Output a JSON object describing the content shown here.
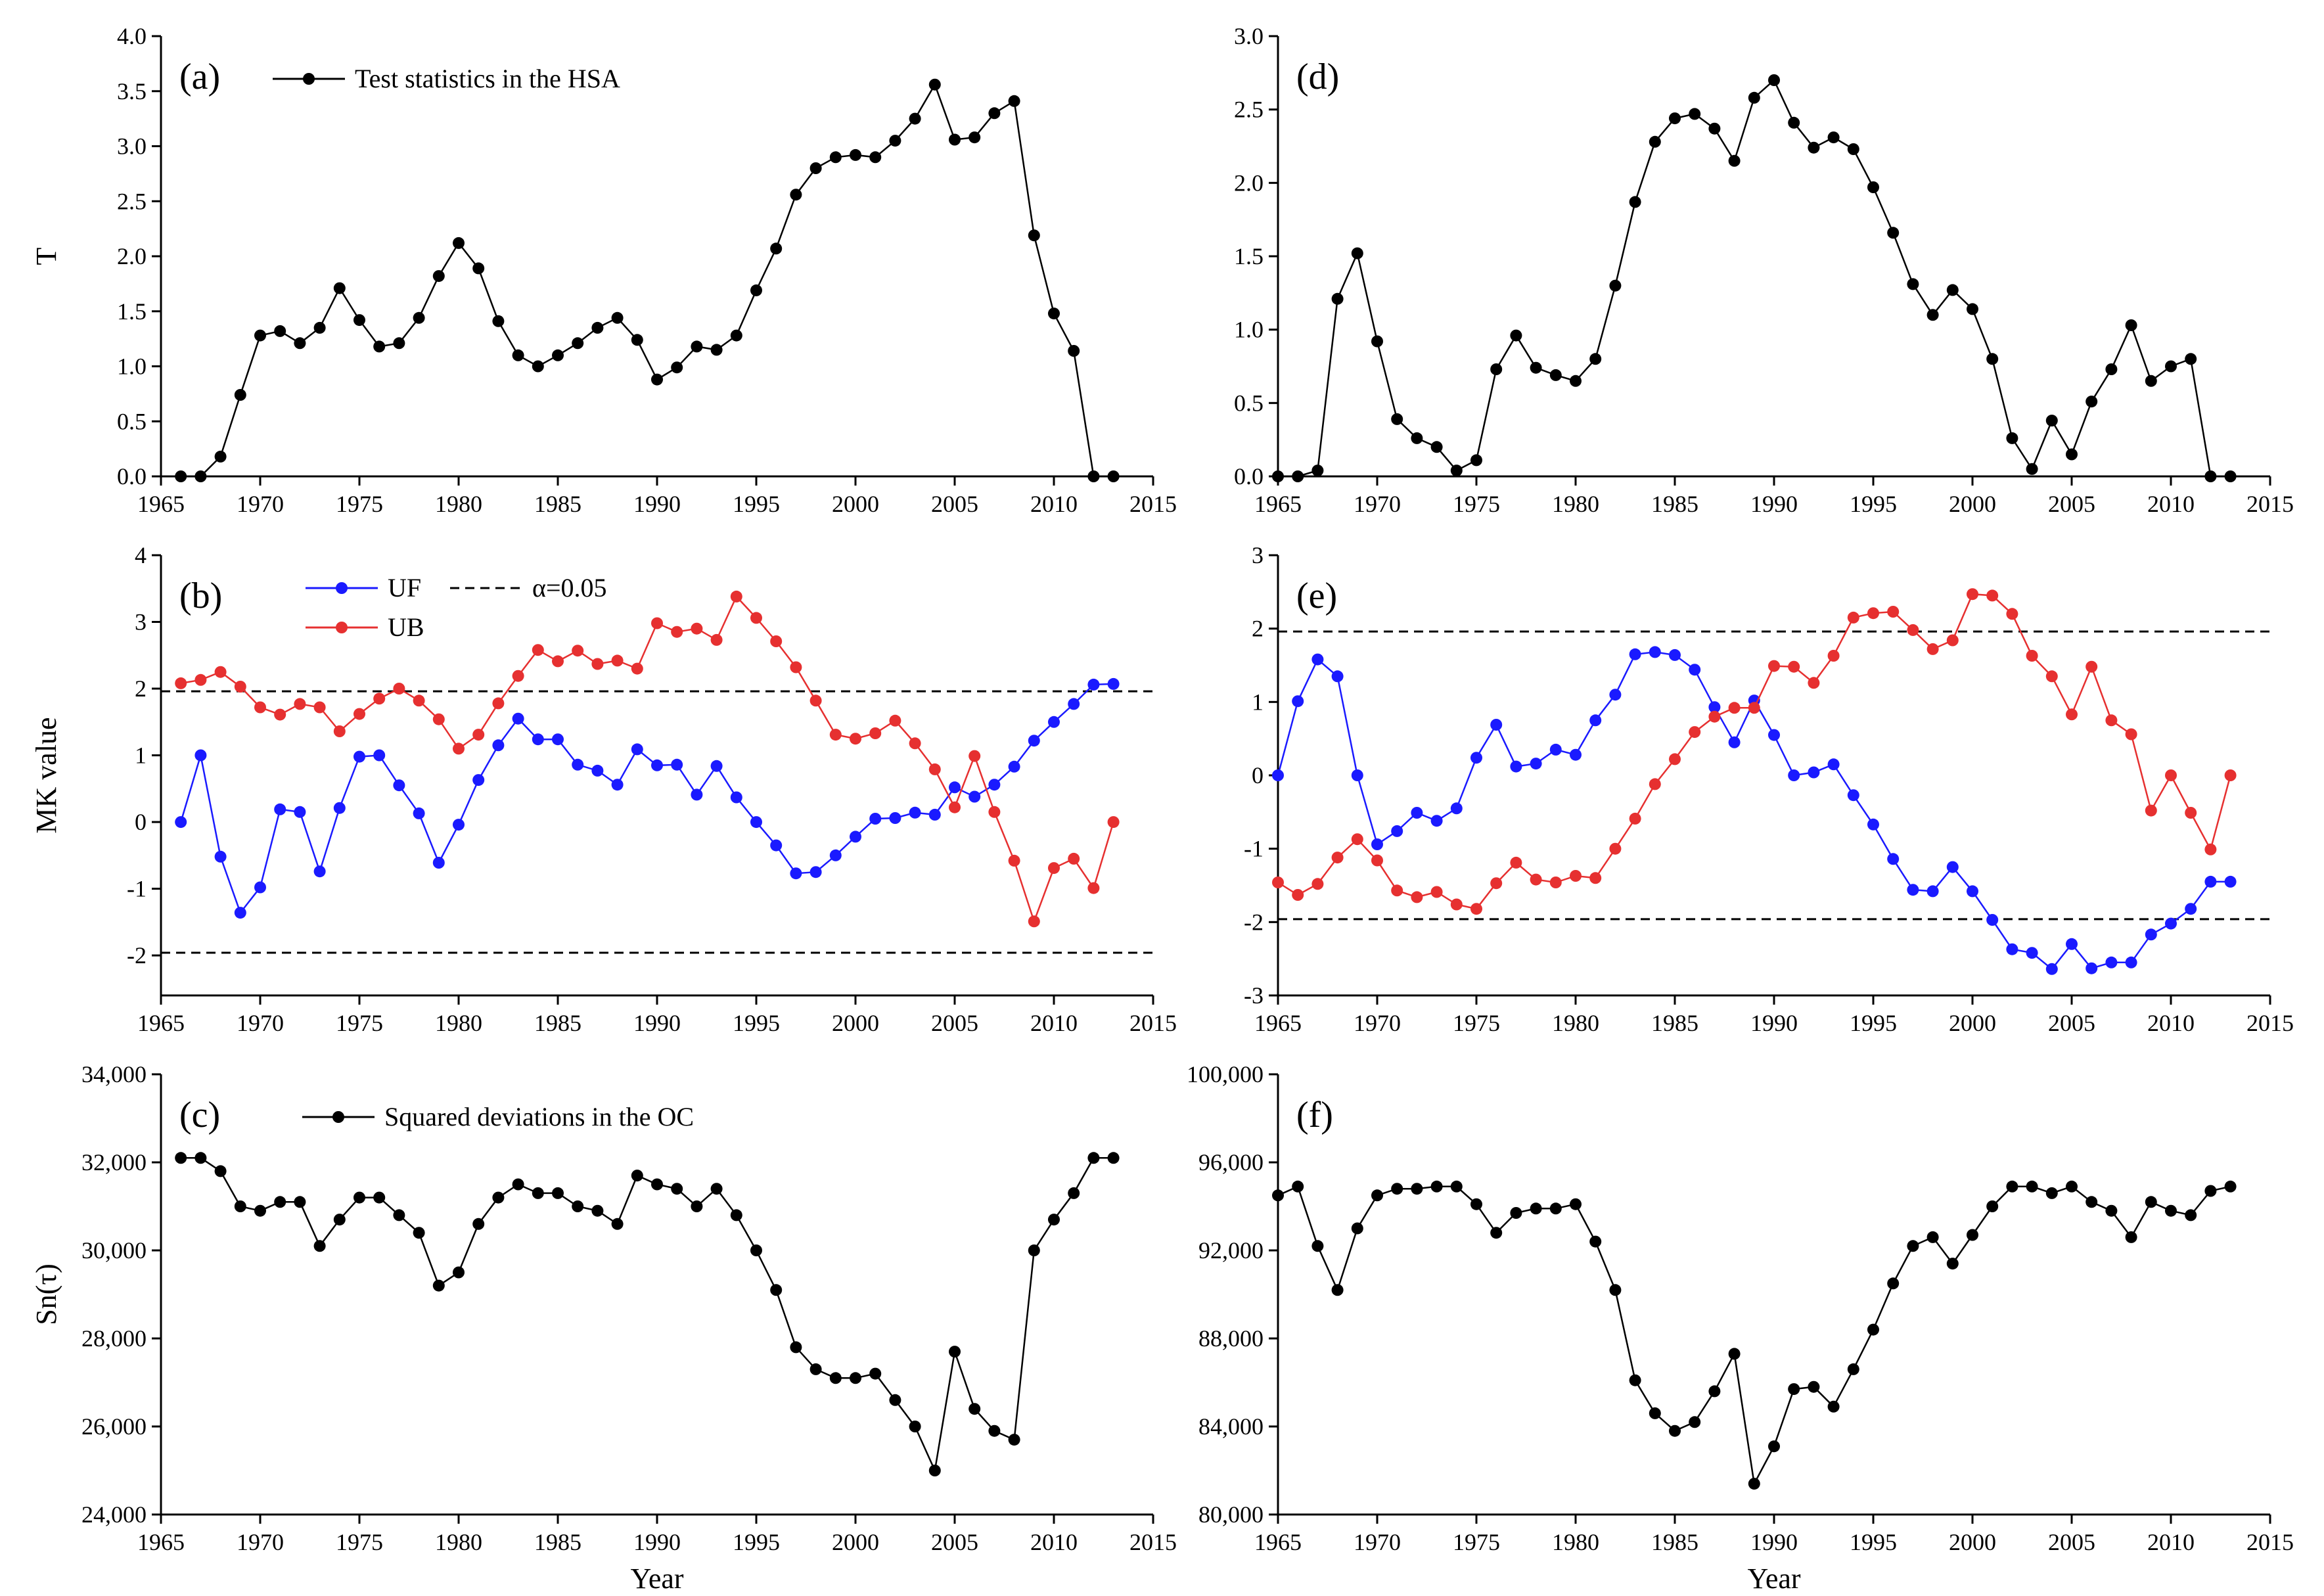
{
  "chart_data": [
    {
      "id": "a",
      "type": "line",
      "panel_label": "(a)",
      "xlabel": "",
      "ylabel": "T",
      "xlim": [
        1965,
        2015
      ],
      "ylim": [
        0,
        4
      ],
      "xticks": [
        1965,
        1970,
        1975,
        1980,
        1985,
        1990,
        1995,
        2000,
        2005,
        2010,
        2015
      ],
      "yticks": [
        0.0,
        0.5,
        1.0,
        1.5,
        2.0,
        2.5,
        3.0,
        3.5,
        4.0
      ],
      "ytick_labels": [
        "0.0",
        "0.5",
        "1.0",
        "1.5",
        "2.0",
        "2.5",
        "3.0",
        "3.5",
        "4.0"
      ],
      "legend": "top-left",
      "grid": false,
      "series": [
        {
          "name": "Test statistics in the HSA",
          "color": "#000000",
          "x": [
            1966,
            1967,
            1968,
            1969,
            1970,
            1971,
            1972,
            1973,
            1974,
            1975,
            1976,
            1977,
            1978,
            1979,
            1980,
            1981,
            1982,
            1983,
            1984,
            1985,
            1986,
            1987,
            1988,
            1989,
            1990,
            1991,
            1992,
            1993,
            1994,
            1995,
            1996,
            1997,
            1998,
            1999,
            2000,
            2001,
            2002,
            2003,
            2004,
            2005,
            2006,
            2007,
            2008,
            2009,
            2010,
            2011,
            2012,
            2013
          ],
          "y": [
            0.0,
            0.0,
            0.18,
            0.74,
            1.28,
            1.32,
            1.21,
            1.35,
            1.71,
            1.42,
            1.18,
            1.21,
            1.44,
            1.82,
            2.12,
            1.89,
            1.41,
            1.1,
            1.0,
            1.1,
            1.21,
            1.35,
            1.44,
            1.24,
            0.88,
            0.99,
            1.18,
            1.15,
            1.28,
            1.69,
            2.07,
            2.56,
            2.8,
            2.9,
            2.92,
            2.9,
            3.05,
            3.25,
            3.56,
            3.06,
            3.08,
            3.3,
            3.41,
            2.19,
            1.48,
            1.14,
            0.0,
            0.0
          ]
        }
      ]
    },
    {
      "id": "b",
      "type": "line",
      "panel_label": "(b)",
      "xlabel": "",
      "ylabel": "MK value",
      "xlim": [
        1965,
        2015
      ],
      "ylim": [
        -2.6,
        4
      ],
      "xticks": [
        1965,
        1970,
        1975,
        1980,
        1985,
        1990,
        1995,
        2000,
        2005,
        2010,
        2015
      ],
      "yticks": [
        -2,
        -1,
        0,
        1,
        2,
        3,
        4
      ],
      "ytick_labels": [
        "-2",
        "-1",
        "0",
        "1",
        "2",
        "3",
        "4"
      ],
      "legend": "top-left",
      "grid": false,
      "reference_lines": [
        {
          "name": "α=0.05",
          "y": 1.96,
          "color": "#000000"
        },
        {
          "y": -1.96,
          "color": "#000000"
        }
      ],
      "series": [
        {
          "name": "UF",
          "color": "#1a1aff",
          "x": [
            1966,
            1967,
            1968,
            1969,
            1970,
            1971,
            1972,
            1973,
            1974,
            1975,
            1976,
            1977,
            1978,
            1979,
            1980,
            1981,
            1982,
            1983,
            1984,
            1985,
            1986,
            1987,
            1988,
            1989,
            1990,
            1991,
            1992,
            1993,
            1994,
            1995,
            1996,
            1997,
            1998,
            1999,
            2000,
            2001,
            2002,
            2003,
            2004,
            2005,
            2006,
            2007,
            2008,
            2009,
            2010,
            2011,
            2012,
            2013
          ],
          "y": [
            0.0,
            1.0,
            -0.52,
            -1.36,
            -0.98,
            0.19,
            0.15,
            -0.74,
            0.21,
            0.98,
            1.0,
            0.55,
            0.13,
            -0.61,
            -0.04,
            0.63,
            1.15,
            1.55,
            1.24,
            1.24,
            0.86,
            0.77,
            0.56,
            1.09,
            0.85,
            0.86,
            0.41,
            0.84,
            0.37,
            0.0,
            -0.35,
            -0.77,
            -0.75,
            -0.5,
            -0.22,
            0.05,
            0.06,
            0.14,
            0.11,
            0.52,
            0.38,
            0.56,
            0.83,
            1.22,
            1.5,
            1.77,
            2.06,
            2.07
          ]
        },
        {
          "name": "UB",
          "color": "#e63030",
          "x": [
            1966,
            1967,
            1968,
            1969,
            1970,
            1971,
            1972,
            1973,
            1974,
            1975,
            1976,
            1977,
            1978,
            1979,
            1980,
            1981,
            1982,
            1983,
            1984,
            1985,
            1986,
            1987,
            1988,
            1989,
            1990,
            1991,
            1992,
            1993,
            1994,
            1995,
            1996,
            1997,
            1998,
            1999,
            2000,
            2001,
            2002,
            2003,
            2004,
            2005,
            2006,
            2007,
            2008,
            2009,
            2010,
            2011,
            2012,
            2013
          ],
          "y": [
            2.08,
            2.13,
            2.25,
            2.03,
            1.72,
            1.61,
            1.77,
            1.72,
            1.36,
            1.62,
            1.85,
            2.0,
            1.82,
            1.54,
            1.1,
            1.31,
            1.78,
            2.19,
            2.58,
            2.41,
            2.57,
            2.37,
            2.42,
            2.3,
            2.98,
            2.85,
            2.9,
            2.73,
            3.38,
            3.06,
            2.71,
            2.32,
            1.82,
            1.31,
            1.25,
            1.33,
            1.52,
            1.18,
            0.79,
            0.22,
            0.99,
            0.15,
            -0.58,
            -1.49,
            -0.69,
            -0.55,
            -0.99,
            0.0
          ]
        }
      ]
    },
    {
      "id": "c",
      "type": "line",
      "panel_label": "(c)",
      "xlabel": "Year",
      "ylabel": "Sn(τ)",
      "xlim": [
        1965,
        2015
      ],
      "ylim": [
        24000,
        34000
      ],
      "xticks": [
        1965,
        1970,
        1975,
        1980,
        1985,
        1990,
        1995,
        2000,
        2005,
        2010,
        2015
      ],
      "yticks": [
        24000,
        26000,
        28000,
        30000,
        32000,
        34000
      ],
      "ytick_labels": [
        "24,000",
        "26,000",
        "28,000",
        "30,000",
        "32,000",
        "34,000"
      ],
      "legend": "top-left",
      "grid": false,
      "series": [
        {
          "name": "Squared deviations in the OC",
          "color": "#000000",
          "x": [
            1966,
            1967,
            1968,
            1969,
            1970,
            1971,
            1972,
            1973,
            1974,
            1975,
            1976,
            1977,
            1978,
            1979,
            1980,
            1981,
            1982,
            1983,
            1984,
            1985,
            1986,
            1987,
            1988,
            1989,
            1990,
            1991,
            1992,
            1993,
            1994,
            1995,
            1996,
            1997,
            1998,
            1999,
            2000,
            2001,
            2002,
            2003,
            2004,
            2005,
            2006,
            2007,
            2008,
            2009,
            2010,
            2011,
            2012,
            2013
          ],
          "y": [
            32100,
            32100,
            31800,
            31000,
            30900,
            31100,
            31100,
            30100,
            30700,
            31200,
            31200,
            30800,
            30400,
            29200,
            29500,
            30600,
            31200,
            31500,
            31300,
            31300,
            31000,
            30900,
            30600,
            31700,
            31500,
            31400,
            31000,
            31400,
            30800,
            30000,
            29100,
            27800,
            27300,
            27100,
            27100,
            27200,
            26600,
            26000,
            25000,
            27700,
            26400,
            25900,
            25700,
            30000,
            30700,
            31300,
            32100,
            32100
          ]
        }
      ]
    },
    {
      "id": "d",
      "type": "line",
      "panel_label": "(d)",
      "xlabel": "",
      "ylabel": "",
      "xlim": [
        1965,
        2015
      ],
      "ylim": [
        0,
        3
      ],
      "xticks": [
        1965,
        1970,
        1975,
        1980,
        1985,
        1990,
        1995,
        2000,
        2005,
        2010,
        2015
      ],
      "yticks": [
        0.0,
        0.5,
        1.0,
        1.5,
        2.0,
        2.5,
        3.0
      ],
      "ytick_labels": [
        "0.0",
        "0.5",
        "1.0",
        "1.5",
        "2.0",
        "2.5",
        "3.0"
      ],
      "grid": false,
      "series": [
        {
          "color": "#000000",
          "x": [
            1965,
            1966,
            1967,
            1968,
            1969,
            1970,
            1971,
            1972,
            1973,
            1974,
            1975,
            1976,
            1977,
            1978,
            1979,
            1980,
            1981,
            1982,
            1983,
            1984,
            1985,
            1986,
            1987,
            1988,
            1989,
            1990,
            1991,
            1992,
            1993,
            1994,
            1995,
            1996,
            1997,
            1998,
            1999,
            2000,
            2001,
            2002,
            2003,
            2004,
            2005,
            2006,
            2007,
            2008,
            2009,
            2010,
            2011,
            2012,
            2013
          ],
          "y": [
            0.0,
            0.0,
            0.04,
            1.21,
            1.52,
            0.92,
            0.39,
            0.26,
            0.2,
            0.04,
            0.11,
            0.73,
            0.96,
            0.74,
            0.69,
            0.65,
            0.8,
            1.3,
            1.87,
            2.28,
            2.44,
            2.47,
            2.37,
            2.15,
            2.58,
            2.7,
            2.41,
            2.24,
            2.31,
            2.23,
            1.97,
            1.66,
            1.31,
            1.1,
            1.27,
            1.14,
            0.8,
            0.26,
            0.05,
            0.38,
            0.15,
            0.51,
            0.73,
            1.03,
            0.65,
            0.75,
            0.8,
            0.0,
            0.0
          ]
        }
      ]
    },
    {
      "id": "e",
      "type": "line",
      "panel_label": "(e)",
      "xlabel": "",
      "ylabel": "",
      "xlim": [
        1965,
        2015
      ],
      "ylim": [
        -3,
        3
      ],
      "xticks": [
        1965,
        1970,
        1975,
        1980,
        1985,
        1990,
        1995,
        2000,
        2005,
        2010,
        2015
      ],
      "yticks": [
        -3,
        -2,
        -1,
        0,
        1,
        2,
        3
      ],
      "ytick_labels": [
        "-3",
        "-2",
        "-1",
        "0",
        "1",
        "2",
        "3"
      ],
      "grid": false,
      "reference_lines": [
        {
          "y": 1.96,
          "color": "#000000"
        },
        {
          "y": -1.96,
          "color": "#000000"
        }
      ],
      "series": [
        {
          "color": "#1a1aff",
          "x": [
            1965,
            1966,
            1967,
            1968,
            1969,
            1970,
            1971,
            1972,
            1973,
            1974,
            1975,
            1976,
            1977,
            1978,
            1979,
            1980,
            1981,
            1982,
            1983,
            1984,
            1985,
            1986,
            1987,
            1988,
            1989,
            1990,
            1991,
            1992,
            1993,
            1994,
            1995,
            1996,
            1997,
            1998,
            1999,
            2000,
            2001,
            2002,
            2003,
            2004,
            2005,
            2006,
            2007,
            2008,
            2009,
            2010,
            2011,
            2012,
            2013
          ],
          "y": [
            0.0,
            1.01,
            1.58,
            1.35,
            0.0,
            -0.94,
            -0.76,
            -0.51,
            -0.62,
            -0.45,
            0.24,
            0.69,
            0.12,
            0.16,
            0.35,
            0.28,
            0.75,
            1.1,
            1.65,
            1.68,
            1.64,
            1.44,
            0.93,
            0.45,
            1.02,
            0.55,
            0.0,
            0.04,
            0.15,
            -0.27,
            -0.67,
            -1.14,
            -1.56,
            -1.58,
            -1.25,
            -1.58,
            -1.97,
            -2.37,
            -2.42,
            -2.64,
            -2.3,
            -2.63,
            -2.55,
            -2.55,
            -2.17,
            -2.02,
            -1.82,
            -1.45,
            -1.45
          ]
        },
        {
          "color": "#e63030",
          "x": [
            1965,
            1966,
            1967,
            1968,
            1969,
            1970,
            1971,
            1972,
            1973,
            1974,
            1975,
            1976,
            1977,
            1978,
            1979,
            1980,
            1981,
            1982,
            1983,
            1984,
            1985,
            1986,
            1987,
            1988,
            1989,
            1990,
            1991,
            1992,
            1993,
            1994,
            1995,
            1996,
            1997,
            1998,
            1999,
            2000,
            2001,
            2002,
            2003,
            2004,
            2005,
            2006,
            2007,
            2008,
            2009,
            2010,
            2011,
            2012,
            2013
          ],
          "y": [
            -1.46,
            -1.63,
            -1.48,
            -1.12,
            -0.87,
            -1.16,
            -1.57,
            -1.66,
            -1.59,
            -1.76,
            -1.82,
            -1.47,
            -1.19,
            -1.42,
            -1.46,
            -1.37,
            -1.4,
            -1.0,
            -0.59,
            -0.12,
            0.22,
            0.59,
            0.8,
            0.92,
            0.92,
            1.49,
            1.48,
            1.26,
            1.63,
            2.15,
            2.21,
            2.23,
            1.98,
            1.72,
            1.84,
            2.47,
            2.45,
            2.2,
            1.63,
            1.35,
            0.83,
            1.48,
            0.75,
            0.56,
            -0.48,
            0.0,
            -0.51,
            -1.01,
            0.0
          ]
        }
      ]
    },
    {
      "id": "f",
      "type": "line",
      "panel_label": "(f)",
      "xlabel": "Year",
      "ylabel": "",
      "xlim": [
        1965,
        2015
      ],
      "ylim": [
        80000,
        100000
      ],
      "xticks": [
        1965,
        1970,
        1975,
        1980,
        1985,
        1990,
        1995,
        2000,
        2005,
        2010,
        2015
      ],
      "yticks": [
        80000,
        84000,
        88000,
        92000,
        96000,
        100000
      ],
      "ytick_labels": [
        "80,000",
        "84,000",
        "88,000",
        "92,000",
        "96,000",
        "100,000"
      ],
      "grid": false,
      "series": [
        {
          "color": "#000000",
          "x": [
            1965,
            1966,
            1967,
            1968,
            1969,
            1970,
            1971,
            1972,
            1973,
            1974,
            1975,
            1976,
            1977,
            1978,
            1979,
            1980,
            1981,
            1982,
            1983,
            1984,
            1985,
            1986,
            1987,
            1988,
            1989,
            1990,
            1991,
            1992,
            1993,
            1994,
            1995,
            1996,
            1997,
            1998,
            1999,
            2000,
            2001,
            2002,
            2003,
            2004,
            2005,
            2006,
            2007,
            2008,
            2009,
            2010,
            2011,
            2012,
            2013
          ],
          "y": [
            94500,
            94900,
            92200,
            90200,
            93000,
            94500,
            94800,
            94800,
            94900,
            94900,
            94100,
            92800,
            93700,
            93900,
            93900,
            94100,
            92400,
            90200,
            86100,
            84600,
            83800,
            84200,
            85600,
            87300,
            81400,
            83100,
            85700,
            85800,
            84900,
            86600,
            88400,
            90500,
            92200,
            92600,
            91400,
            92700,
            94000,
            94900,
            94900,
            94600,
            94900,
            94200,
            93800,
            92600,
            94200,
            93800,
            93600,
            94700,
            94900
          ]
        }
      ]
    }
  ]
}
